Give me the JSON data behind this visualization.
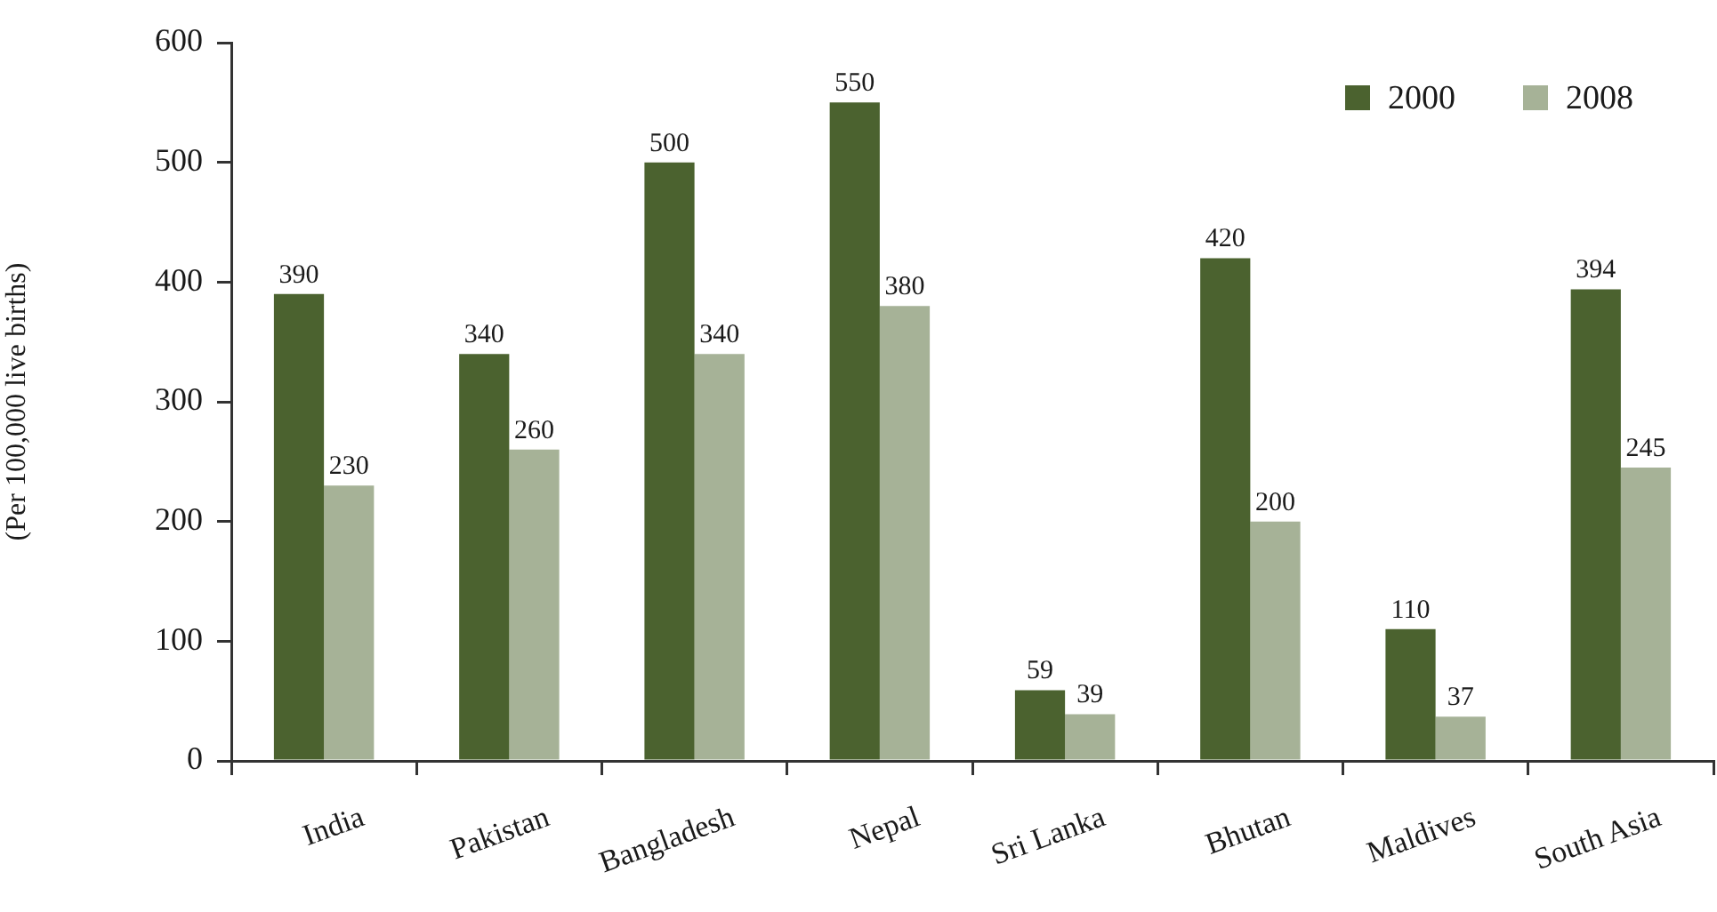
{
  "chart_data": {
    "type": "bar",
    "ylabel": "(Per 100,000 live births)",
    "categories": [
      "India",
      "Pakistan",
      "Bangladesh",
      "Nepal",
      "Sri Lanka",
      "Bhutan",
      "Maldives",
      "South Asia"
    ],
    "series": [
      {
        "name": "2000",
        "color": "#4b622f",
        "values": [
          390,
          340,
          500,
          550,
          59,
          420,
          110,
          394
        ]
      },
      {
        "name": "2008",
        "color": "#a6b297",
        "values": [
          230,
          260,
          340,
          380,
          39,
          200,
          37,
          245
        ]
      }
    ],
    "ylim": [
      0,
      600
    ],
    "yticks": [
      0,
      100,
      200,
      300,
      400,
      500,
      600
    ],
    "grid": false,
    "legend": "top right",
    "data_labels": true
  }
}
